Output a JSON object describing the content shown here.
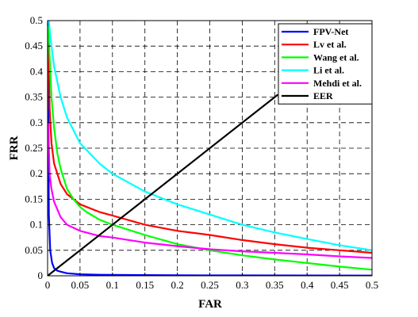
{
  "chart_data": {
    "type": "line",
    "title": "",
    "xlabel": "FAR",
    "ylabel": "FRR",
    "xlim": [
      0,
      0.5
    ],
    "ylim": [
      0,
      0.5
    ],
    "xticks": [
      0,
      0.05,
      0.1,
      0.15,
      0.2,
      0.25,
      0.3,
      0.35,
      0.4,
      0.45,
      0.5
    ],
    "yticks": [
      0,
      0.05,
      0.1,
      0.15,
      0.2,
      0.25,
      0.3,
      0.35,
      0.4,
      0.45,
      0.5
    ],
    "xtick_labels": [
      "0",
      "0.05",
      "0.1",
      "0.15",
      "0.2",
      "0.25",
      "0.3",
      "0.35",
      "0.4",
      "0.45",
      "0.5"
    ],
    "ytick_labels": [
      "0",
      "0.05",
      "0.1",
      "0.15",
      "0.2",
      "0.25",
      "0.3",
      "0.35",
      "0.4",
      "0.45",
      "0.5"
    ],
    "grid": true,
    "legend_position": "top-right",
    "series": [
      {
        "name": "FPV-Net",
        "color": "#0000ff",
        "x": [
          0.0005,
          0.002,
          0.004,
          0.007,
          0.01,
          0.015,
          0.02,
          0.03,
          0.05,
          0.08,
          0.12,
          0.2,
          0.3,
          0.4,
          0.5
        ],
        "y": [
          0.5,
          0.12,
          0.05,
          0.025,
          0.015,
          0.01,
          0.008,
          0.005,
          0.003,
          0.002,
          0.0015,
          0.001,
          0.0008,
          0.0006,
          0.0005
        ]
      },
      {
        "name": "Lv et al.",
        "color": "#ff0000",
        "x": [
          0.001,
          0.003,
          0.006,
          0.01,
          0.02,
          0.03,
          0.05,
          0.08,
          0.1,
          0.15,
          0.2,
          0.25,
          0.3,
          0.35,
          0.4,
          0.45,
          0.5
        ],
        "y": [
          0.48,
          0.33,
          0.26,
          0.22,
          0.18,
          0.16,
          0.14,
          0.125,
          0.118,
          0.1,
          0.088,
          0.08,
          0.07,
          0.062,
          0.055,
          0.05,
          0.045
        ]
      },
      {
        "name": "Wang et al.",
        "color": "#00ff00",
        "x": [
          0.001,
          0.003,
          0.006,
          0.01,
          0.015,
          0.02,
          0.03,
          0.04,
          0.05,
          0.06,
          0.08,
          0.1,
          0.15,
          0.2,
          0.25,
          0.3,
          0.35,
          0.4,
          0.45,
          0.5
        ],
        "y": [
          0.49,
          0.43,
          0.35,
          0.29,
          0.24,
          0.21,
          0.17,
          0.15,
          0.135,
          0.125,
          0.11,
          0.1,
          0.08,
          0.062,
          0.05,
          0.04,
          0.032,
          0.025,
          0.018,
          0.012
        ]
      },
      {
        "name": "Li et al.",
        "color": "#00ffff",
        "x": [
          0.002,
          0.005,
          0.01,
          0.02,
          0.03,
          0.05,
          0.08,
          0.1,
          0.15,
          0.2,
          0.25,
          0.3,
          0.35,
          0.4,
          0.45,
          0.5
        ],
        "y": [
          0.5,
          0.46,
          0.41,
          0.35,
          0.31,
          0.26,
          0.22,
          0.2,
          0.165,
          0.14,
          0.12,
          0.1,
          0.085,
          0.072,
          0.06,
          0.05
        ]
      },
      {
        "name": "Mehdi et al.",
        "color": "#ff00ff",
        "x": [
          0.001,
          0.003,
          0.006,
          0.01,
          0.02,
          0.03,
          0.05,
          0.08,
          0.1,
          0.15,
          0.2,
          0.25,
          0.3,
          0.35,
          0.4,
          0.45,
          0.5
        ],
        "y": [
          0.3,
          0.2,
          0.17,
          0.145,
          0.115,
          0.1,
          0.088,
          0.078,
          0.075,
          0.065,
          0.058,
          0.052,
          0.048,
          0.045,
          0.042,
          0.038,
          0.035
        ]
      },
      {
        "name": "EER",
        "color": "#000000",
        "x": [
          0,
          0.355
        ],
        "y": [
          0,
          0.355
        ]
      }
    ]
  }
}
